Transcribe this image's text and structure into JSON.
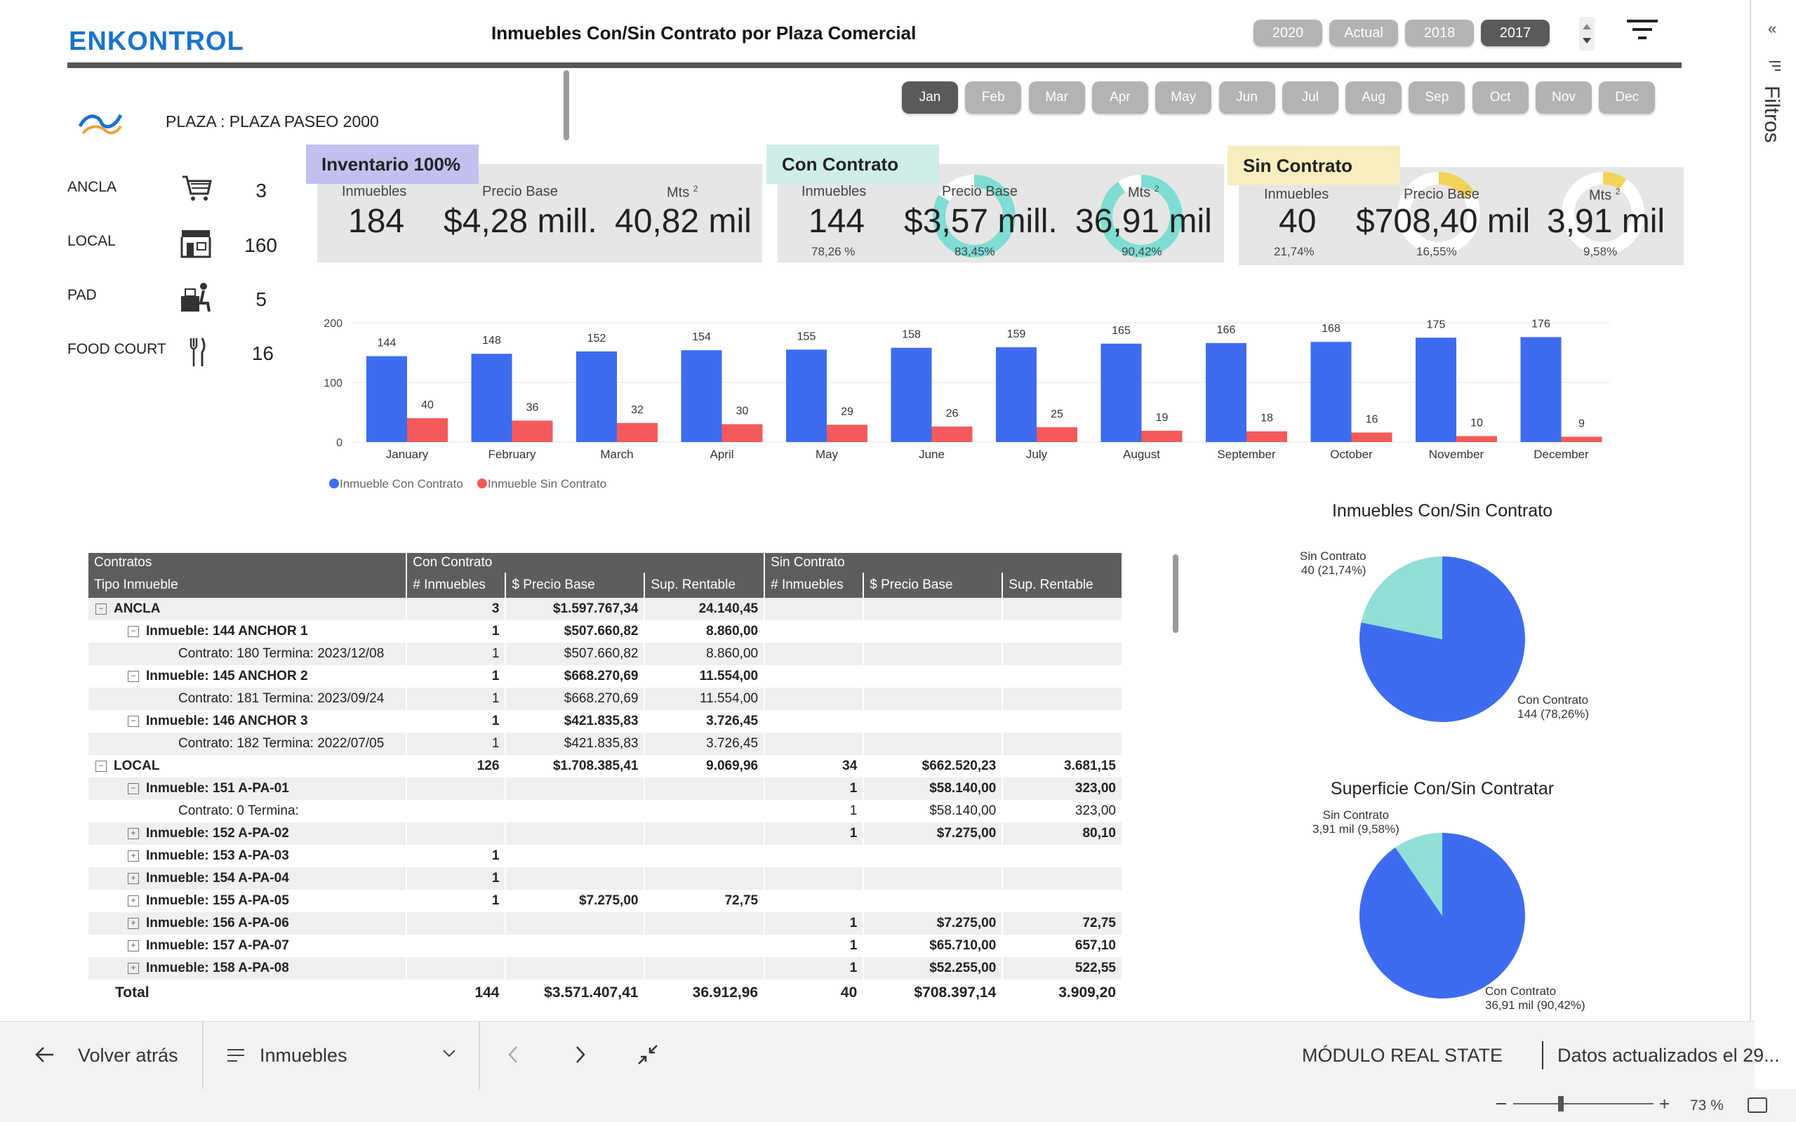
{
  "header": {
    "logo": "ENKONTROL",
    "title": "Inmuebles Con/Sin Contrato por Plaza Comercial",
    "years": [
      "2020",
      "Actual",
      "2018",
      "2017"
    ],
    "active_year": "2017",
    "months": [
      "Jan",
      "Feb",
      "Mar",
      "Apr",
      "May",
      "Jun",
      "Jul",
      "Aug",
      "Sep",
      "Oct",
      "Nov",
      "Dec"
    ],
    "active_month": "Jan"
  },
  "plaza": {
    "label": "PLAZA : PLAZA PASEO 2000"
  },
  "categories": [
    {
      "name": "ANCLA",
      "icon": "shopping-cart-icon",
      "value": "3"
    },
    {
      "name": "LOCAL",
      "icon": "storefront-icon",
      "value": "160"
    },
    {
      "name": "PAD",
      "icon": "desk-person-icon",
      "value": "5"
    },
    {
      "name": "FOOD COURT",
      "icon": "fork-knife-icon",
      "value": "16"
    }
  ],
  "cards": {
    "inventario": {
      "title": "Inventario 100%",
      "color": "#c3c0ef",
      "l1": "Inmuebles",
      "l2": "Precio Base",
      "l3": "Mts",
      "sup": "2",
      "v1": "184",
      "v2": "$4,28 mill.",
      "v3": "40,82 mil"
    },
    "con": {
      "title": "Con Contrato",
      "color": "#cfeeea",
      "l1": "Inmuebles",
      "l2": "Precio Base",
      "l3": "Mts",
      "sup": "2",
      "v1": "144",
      "v2": "$3,57 mill.",
      "v3": "36,91 mil",
      "p1": "78,26 %",
      "p2": "83,45%",
      "p3": "90,42%",
      "ring_color": "#7fddd3"
    },
    "sin": {
      "title": "Sin Contrato",
      "color": "#f6eebe",
      "l1": "Inmuebles",
      "l2": "Precio Base",
      "l3": "Mts",
      "sup": "2",
      "v1": "40",
      "v2": "$708,40 mil",
      "v3": "3,91 mil",
      "p1": "21,74%",
      "p2": "16,55%",
      "p3": "9,58%",
      "ring_color": "#f1d35a"
    }
  },
  "chart_data": [
    {
      "type": "bar",
      "categories": [
        "January",
        "February",
        "March",
        "April",
        "May",
        "June",
        "July",
        "August",
        "September",
        "October",
        "November",
        "December"
      ],
      "series": [
        {
          "name": "Inmueble Con Contrato",
          "color": "#3e6cf0",
          "values": [
            144,
            148,
            152,
            154,
            155,
            158,
            159,
            165,
            166,
            168,
            175,
            176
          ]
        },
        {
          "name": "Inmueble Sin Contrato",
          "color": "#f55a5a",
          "values": [
            40,
            36,
            32,
            30,
            29,
            26,
            25,
            19,
            18,
            16,
            10,
            9
          ]
        }
      ],
      "yticks": [
        "200",
        "100",
        "0"
      ],
      "ylim": [
        0,
        200
      ],
      "legend": "bottom-left"
    },
    {
      "type": "pie",
      "title": "Inmuebles Con/Sin Contrato",
      "slices": [
        {
          "name": "Con Contrato",
          "value": 144,
          "label": "144 (78,26%)",
          "color": "#3e6cf0"
        },
        {
          "name": "Sin Contrato",
          "value": 40,
          "label": "40 (21,74%)",
          "color": "#90e0d8"
        }
      ]
    },
    {
      "type": "pie",
      "title": "Superficie Con/Sin Contratar",
      "slices": [
        {
          "name": "Con Contrato",
          "value": 90.42,
          "label": "36,91 mil (90,42%)",
          "color": "#3e6cf0"
        },
        {
          "name": "Sin Contrato",
          "value": 9.58,
          "label": "3,91 mil (9,58%)",
          "color": "#90e0d8"
        }
      ]
    }
  ],
  "table": {
    "group_headers": [
      "Contratos",
      "Con Contrato",
      "Sin Contrato"
    ],
    "columns": [
      "Tipo Inmueble",
      "# Inmuebles",
      "$ Precio Base",
      "Sup. Rentable",
      "# Inmuebles",
      "$ Precio Base",
      "Sup. Rentable"
    ],
    "rows": [
      {
        "level": 0,
        "bold": true,
        "exp": "⊟",
        "label": "ANCLA",
        "c": [
          "3",
          "$1.597.767,34",
          "24.140,45",
          "",
          "",
          ""
        ]
      },
      {
        "level": 1,
        "bold": true,
        "exp": "⊟",
        "label": "Inmueble: 144 ANCHOR 1",
        "c": [
          "1",
          "$507.660,82",
          "8.860,00",
          "",
          "",
          ""
        ]
      },
      {
        "level": 2,
        "bold": false,
        "exp": "",
        "label": "Contrato: 180 Termina: 2023/12/08",
        "c": [
          "1",
          "$507.660,82",
          "8.860,00",
          "",
          "",
          ""
        ]
      },
      {
        "level": 1,
        "bold": true,
        "exp": "⊟",
        "label": "Inmueble: 145 ANCHOR 2",
        "c": [
          "1",
          "$668.270,69",
          "11.554,00",
          "",
          "",
          ""
        ]
      },
      {
        "level": 2,
        "bold": false,
        "exp": "",
        "label": "Contrato: 181 Termina: 2023/09/24",
        "c": [
          "1",
          "$668.270,69",
          "11.554,00",
          "",
          "",
          ""
        ]
      },
      {
        "level": 1,
        "bold": true,
        "exp": "⊟",
        "label": "Inmueble: 146 ANCHOR 3",
        "c": [
          "1",
          "$421.835,83",
          "3.726,45",
          "",
          "",
          ""
        ]
      },
      {
        "level": 2,
        "bold": false,
        "exp": "",
        "label": "Contrato: 182 Termina: 2022/07/05",
        "c": [
          "1",
          "$421.835,83",
          "3.726,45",
          "",
          "",
          ""
        ]
      },
      {
        "level": 0,
        "bold": true,
        "exp": "⊟",
        "label": "LOCAL",
        "c": [
          "126",
          "$1.708.385,41",
          "9.069,96",
          "34",
          "$662.520,23",
          "3.681,15"
        ]
      },
      {
        "level": 1,
        "bold": true,
        "exp": "⊟",
        "label": "Inmueble: 151 A-PA-01",
        "c": [
          "",
          "",
          "",
          "1",
          "$58.140,00",
          "323,00"
        ]
      },
      {
        "level": 2,
        "bold": false,
        "exp": "",
        "label": "Contrato: 0 Termina:",
        "c": [
          "",
          "",
          "",
          "1",
          "$58.140,00",
          "323,00"
        ]
      },
      {
        "level": 1,
        "bold": true,
        "exp": "⊞",
        "label": "Inmueble: 152 A-PA-02",
        "c": [
          "",
          "",
          "",
          "1",
          "$7.275,00",
          "80,10"
        ]
      },
      {
        "level": 1,
        "bold": true,
        "exp": "⊞",
        "label": "Inmueble: 153 A-PA-03",
        "c": [
          "1",
          "",
          "",
          "",
          "",
          ""
        ]
      },
      {
        "level": 1,
        "bold": true,
        "exp": "⊞",
        "label": "Inmueble: 154 A-PA-04",
        "c": [
          "1",
          "",
          "",
          "",
          "",
          ""
        ]
      },
      {
        "level": 1,
        "bold": true,
        "exp": "⊞",
        "label": "Inmueble: 155 A-PA-05",
        "c": [
          "1",
          "$7.275,00",
          "72,75",
          "",
          "",
          ""
        ]
      },
      {
        "level": 1,
        "bold": true,
        "exp": "⊞",
        "label": "Inmueble: 156 A-PA-06",
        "c": [
          "",
          "",
          "",
          "1",
          "$7.275,00",
          "72,75"
        ]
      },
      {
        "level": 1,
        "bold": true,
        "exp": "⊞",
        "label": "Inmueble: 157 A-PA-07",
        "c": [
          "",
          "",
          "",
          "1",
          "$65.710,00",
          "657,10"
        ]
      },
      {
        "level": 1,
        "bold": true,
        "exp": "⊞",
        "label": "Inmueble: 158 A-PA-08",
        "c": [
          "",
          "",
          "",
          "1",
          "$52.255,00",
          "522,55"
        ]
      }
    ],
    "total": {
      "label": "Total",
      "c": [
        "144",
        "$3.571.407,41",
        "36.912,96",
        "40",
        "$708.397,14",
        "3.909,20"
      ]
    }
  },
  "bottom_bar": {
    "back": "Volver atrás",
    "page_select": "Inmuebles",
    "module": "MÓDULO REAL STATE",
    "updated": "Datos actualizados el 29..."
  },
  "status_bar": {
    "zoom": "73 %"
  },
  "filters_pane": {
    "label": "Filtros"
  }
}
